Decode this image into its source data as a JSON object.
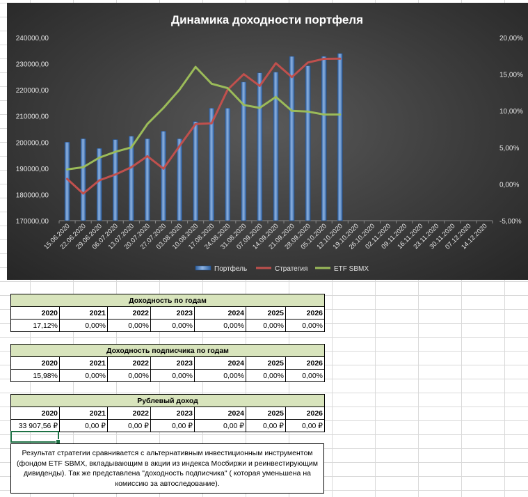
{
  "chart_data": {
    "type": "bar",
    "title": "Динамика доходности портфеля",
    "categories": [
      "15.06.2020",
      "22.06.2020",
      "29.06.2020",
      "06.07.2020",
      "13.07.2020",
      "20.07.2020",
      "27.07.2020",
      "03.08.2020",
      "10.08.2020",
      "17.08.2020",
      "24.08.2020",
      "31.08.2020",
      "07.09.2020",
      "14.09.2020",
      "21.09.2020",
      "28.09.2020",
      "05.10.2020",
      "12.10.2020",
      "19.10.2020",
      "26.10.2020",
      "02.11.2020",
      "09.11.2020",
      "16.11.2020",
      "23.11.2020",
      "30.11.2020",
      "07.12.2020",
      "14.12.2020"
    ],
    "y_left": {
      "min": 170000,
      "max": 240000,
      "step": 10000,
      "ticks": [
        "170000,00",
        "180000,00",
        "190000,00",
        "200000,00",
        "210000,00",
        "220000,00",
        "230000,00",
        "240000,00"
      ]
    },
    "y_right": {
      "min": -5,
      "max": 20,
      "step": 5,
      "ticks": [
        "-5,00%",
        "0,00%",
        "5,00%",
        "10,00%",
        "15,00%",
        "20,00%"
      ]
    },
    "series": [
      {
        "name": "Портфель",
        "type": "bar",
        "axis": "left",
        "color": "#4f81bd",
        "values": [
          200000,
          201300,
          197600,
          201000,
          202300,
          201300,
          204200,
          201300,
          207900,
          213000,
          213000,
          223000,
          226500,
          226800,
          232800,
          229200,
          232800,
          233900,
          null,
          null,
          null,
          null,
          null,
          null,
          null,
          null,
          null
        ]
      },
      {
        "name": "Стратегия",
        "type": "line",
        "axis": "right",
        "color": "#c0504d",
        "values": [
          0.7,
          -1.3,
          0.5,
          1.3,
          2.3,
          3.8,
          2.1,
          5.2,
          8.2,
          8.3,
          12.9,
          15.0,
          13.4,
          16.5,
          14.6,
          16.6,
          17.1,
          17.12,
          null,
          null,
          null,
          null,
          null,
          null,
          null,
          null,
          null
        ]
      },
      {
        "name": "ETF SBMX",
        "type": "line",
        "axis": "right",
        "color": "#9bbb59",
        "values": [
          2.0,
          2.3,
          3.6,
          4.4,
          5.0,
          8.2,
          10.4,
          12.9,
          16.0,
          13.7,
          13.1,
          10.8,
          10.4,
          11.9,
          10.0,
          9.9,
          9.5,
          9.5,
          null,
          null,
          null,
          null,
          null,
          null,
          null,
          null,
          null
        ]
      }
    ],
    "legend": "bottom"
  },
  "tables": [
    {
      "title": "Доходность по годам",
      "years": [
        "2020",
        "2021",
        "2022",
        "2023",
        "2024",
        "2025",
        "2026"
      ],
      "values": [
        "17,12%",
        "0,00%",
        "0,00%",
        "0,00%",
        "0,00%",
        "0,00%",
        "0,00%"
      ]
    },
    {
      "title": "Доходность подписчика по годам",
      "years": [
        "2020",
        "2021",
        "2022",
        "2023",
        "2024",
        "2025",
        "2026"
      ],
      "values": [
        "15,98%",
        "0,00%",
        "0,00%",
        "0,00%",
        "0,00%",
        "0,00%",
        "0,00%"
      ]
    },
    {
      "title": "Рублевый доход",
      "years": [
        "2020",
        "2021",
        "2022",
        "2023",
        "2024",
        "2025",
        "2026"
      ],
      "values": [
        "33 907,56 ₽",
        "0,00 ₽",
        "0,00 ₽",
        "0,00 ₽",
        "0,00 ₽",
        "0,00 ₽",
        "0,00 ₽"
      ]
    }
  ],
  "note": "Результат стратегии сравнивается с альтернативным инвестиционным инструментом (фондом ETF SBMX, вкладывающим в акции из индекса Мосбиржи и реинвестирующим дивиденды). Так же представлена \"доходность подписчика\" ( которая уменьшена на комиссию за автоследование)."
}
